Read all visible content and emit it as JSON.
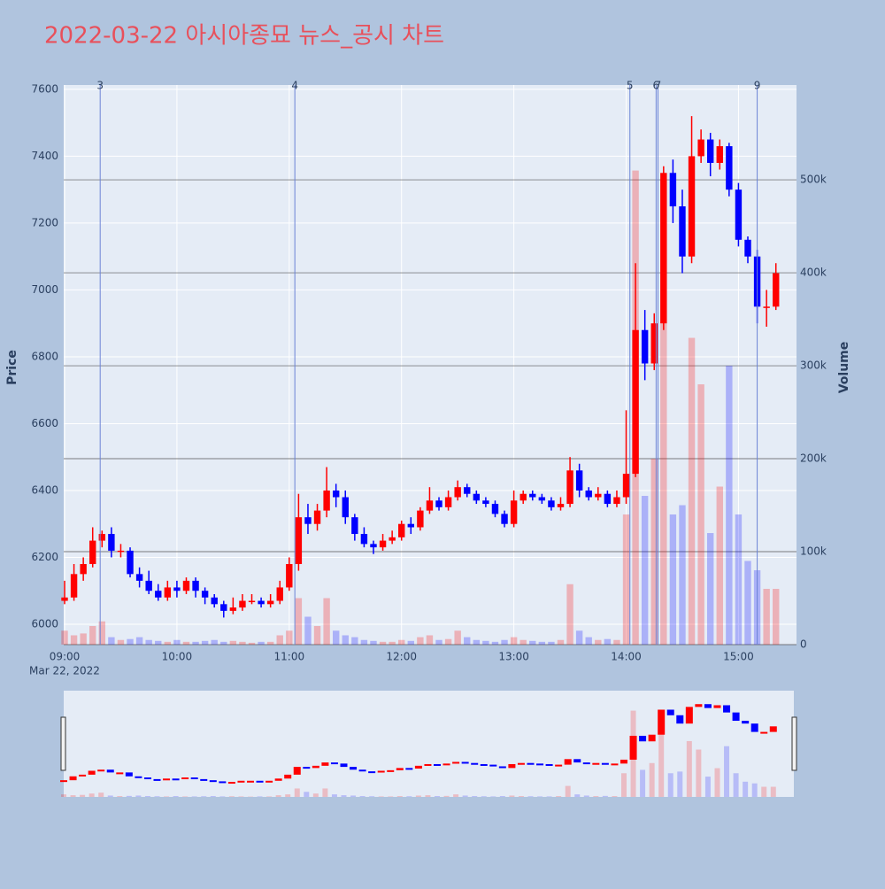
{
  "chart_data": {
    "type": "candlestick",
    "title": "2022-03-22 아시아종묘 뉴스_공시 차트",
    "ylabel": "Price",
    "y2label": "Volume",
    "x_date_label": "Mar 22, 2022",
    "up_color": "#ff0000",
    "down_color": "#0000ff",
    "grid": true,
    "xlim": [
      "09:00",
      "15:31"
    ],
    "xticks": [
      "09:00",
      "10:00",
      "11:00",
      "12:00",
      "13:00",
      "14:00",
      "15:00"
    ],
    "ylim": [
      5939,
      7613
    ],
    "yticks": [
      6000,
      6200,
      6400,
      6600,
      6800,
      7000,
      7200,
      7400,
      7600
    ],
    "y2lim": [
      0,
      602000
    ],
    "y2ticks": [
      0,
      {
        "value": 100000,
        "label": "100k"
      },
      {
        "value": 200000,
        "label": "200k"
      },
      {
        "value": 300000,
        "label": "300k"
      },
      {
        "value": 400000,
        "label": "400k"
      },
      {
        "value": 500000,
        "label": "500k"
      }
    ],
    "annotations": [
      {
        "x": "09:19",
        "text": "3"
      },
      {
        "x": "11:03",
        "text": "4"
      },
      {
        "x": "14:02",
        "text": "5"
      },
      {
        "x": "14:16",
        "text": "6"
      },
      {
        "x": "14:17",
        "text": "7"
      },
      {
        "x": "15:10",
        "text": "9"
      }
    ],
    "x": [
      "09:00",
      "09:05",
      "09:10",
      "09:15",
      "09:20",
      "09:25",
      "09:30",
      "09:35",
      "09:40",
      "09:45",
      "09:50",
      "09:55",
      "10:00",
      "10:05",
      "10:10",
      "10:15",
      "10:20",
      "10:25",
      "10:30",
      "10:35",
      "10:40",
      "10:45",
      "10:50",
      "10:55",
      "11:00",
      "11:05",
      "11:10",
      "11:15",
      "11:20",
      "11:25",
      "11:30",
      "11:35",
      "11:40",
      "11:45",
      "11:50",
      "11:55",
      "12:00",
      "12:05",
      "12:10",
      "12:15",
      "12:20",
      "12:25",
      "12:30",
      "12:35",
      "12:40",
      "12:45",
      "12:50",
      "12:55",
      "13:00",
      "13:05",
      "13:10",
      "13:15",
      "13:20",
      "13:25",
      "13:30",
      "13:35",
      "13:40",
      "13:45",
      "13:50",
      "13:55",
      "14:00",
      "14:05",
      "14:10",
      "14:15",
      "14:20",
      "14:25",
      "14:30",
      "14:35",
      "14:40",
      "14:45",
      "14:50",
      "14:55",
      "15:00",
      "15:05",
      "15:10",
      "15:15",
      "15:20"
    ],
    "open": [
      6070,
      6080,
      6150,
      6180,
      6250,
      6270,
      6220,
      6220,
      6150,
      6130,
      6100,
      6080,
      6110,
      6100,
      6130,
      6100,
      6080,
      6060,
      6040,
      6050,
      6070,
      6070,
      6060,
      6070,
      6110,
      6180,
      6320,
      6300,
      6340,
      6400,
      6380,
      6320,
      6270,
      6240,
      6230,
      6250,
      6260,
      6300,
      6290,
      6340,
      6370,
      6350,
      6380,
      6410,
      6390,
      6370,
      6360,
      6330,
      6300,
      6370,
      6390,
      6380,
      6370,
      6350,
      6360,
      6460,
      6400,
      6380,
      6390,
      6360,
      6380,
      6450,
      6880,
      6780,
      6900,
      7350,
      7250,
      7100,
      7400,
      7450,
      7380,
      7430,
      7300,
      7150,
      7100,
      6950,
      6950
    ],
    "high": [
      6130,
      6180,
      6200,
      6290,
      6280,
      6290,
      6240,
      6230,
      6170,
      6160,
      6120,
      6130,
      6130,
      6140,
      6140,
      6110,
      6090,
      6070,
      6080,
      6090,
      6090,
      6080,
      6090,
      6130,
      6200,
      6390,
      6360,
      6360,
      6470,
      6420,
      6400,
      6330,
      6290,
      6250,
      6270,
      6280,
      6310,
      6320,
      6350,
      6410,
      6380,
      6400,
      6430,
      6420,
      6400,
      6380,
      6370,
      6340,
      6400,
      6400,
      6400,
      6390,
      6380,
      6380,
      6500,
      6480,
      6410,
      6410,
      6400,
      6400,
      6640,
      7080,
      6940,
      6930,
      7370,
      7390,
      7300,
      7520,
      7480,
      7470,
      7450,
      7440,
      7320,
      7160,
      7120,
      7000,
      7080
    ],
    "low": [
      6060,
      6070,
      6130,
      6170,
      6230,
      6200,
      6200,
      6140,
      6110,
      6090,
      6070,
      6070,
      6080,
      6090,
      6080,
      6060,
      6050,
      6020,
      6030,
      6040,
      6060,
      6050,
      6050,
      6060,
      6100,
      6160,
      6270,
      6280,
      6320,
      6350,
      6300,
      6250,
      6230,
      6210,
      6220,
      6240,
      6250,
      6270,
      6280,
      6330,
      6340,
      6340,
      6370,
      6380,
      6360,
      6350,
      6320,
      6290,
      6290,
      6360,
      6370,
      6360,
      6340,
      6340,
      6350,
      6380,
      6370,
      6370,
      6350,
      6350,
      6360,
      6440,
      6730,
      6760,
      6880,
      7200,
      7050,
      7080,
      7380,
      7340,
      7360,
      7280,
      7130,
      7080,
      6900,
      6890,
      6940
    ],
    "close": [
      6080,
      6150,
      6180,
      6250,
      6270,
      6220,
      6220,
      6150,
      6130,
      6100,
      6080,
      6110,
      6100,
      6130,
      6100,
      6080,
      6060,
      6040,
      6050,
      6070,
      6070,
      6060,
      6070,
      6110,
      6180,
      6320,
      6300,
      6340,
      6400,
      6380,
      6320,
      6270,
      6240,
      6230,
      6250,
      6260,
      6300,
      6290,
      6340,
      6370,
      6350,
      6380,
      6410,
      6390,
      6370,
      6360,
      6330,
      6300,
      6370,
      6390,
      6380,
      6370,
      6350,
      6360,
      6460,
      6400,
      6380,
      6390,
      6360,
      6380,
      6450,
      6880,
      6780,
      6900,
      7350,
      7250,
      7100,
      7400,
      7450,
      7380,
      7430,
      7300,
      7150,
      7100,
      6950,
      6950,
      7050
    ],
    "volume": [
      15000,
      10000,
      12000,
      20000,
      25000,
      8000,
      5000,
      6000,
      8000,
      5000,
      4000,
      3000,
      5000,
      3000,
      3000,
      4000,
      5000,
      3000,
      4000,
      3000,
      2000,
      3000,
      3000,
      10000,
      15000,
      50000,
      30000,
      20000,
      50000,
      15000,
      10000,
      8000,
      5000,
      4000,
      3000,
      3000,
      5000,
      4000,
      8000,
      10000,
      5000,
      6000,
      15000,
      8000,
      5000,
      4000,
      3000,
      5000,
      8000,
      5000,
      4000,
      3000,
      3000,
      5000,
      65000,
      15000,
      8000,
      5000,
      6000,
      5000,
      140000,
      510000,
      160000,
      200000,
      500000,
      140000,
      150000,
      330000,
      280000,
      120000,
      170000,
      300000,
      140000,
      90000,
      80000,
      60000,
      60000
    ]
  }
}
